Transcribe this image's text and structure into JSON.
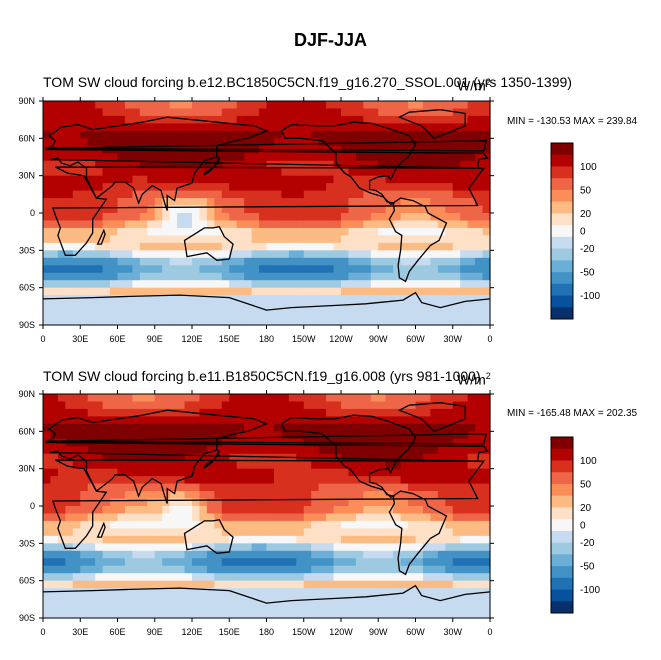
{
  "figure": {
    "title": "DJF-JJA"
  },
  "chart_data": [
    {
      "type": "heatmap",
      "title": "TOM SW cloud forcing",
      "case_label": "b.e12.BC1850C5CN.f19_g16.270_SSOL.001 (yrs 1350-1399)",
      "units_base": "W/m",
      "units_exp": "2",
      "minmax": "MIN = -130.53 MAX = 239.84",
      "min": -130.53,
      "max": 239.84,
      "xlim": [
        0,
        360
      ],
      "ylim": [
        -90,
        90
      ],
      "x_ticks": [
        "0",
        "30E",
        "60E",
        "90E",
        "120E",
        "150E",
        "180",
        "150W",
        "120W",
        "90W",
        "60W",
        "30W",
        "0"
      ],
      "y_ticks": [
        "90N",
        "60N",
        "30N",
        "0",
        "30S",
        "60S",
        "90S"
      ],
      "colorbar_labels": [
        "100",
        "50",
        "20",
        "0",
        "-20",
        "-50",
        "-100"
      ]
    },
    {
      "type": "heatmap",
      "title": "TOM SW cloud forcing",
      "case_label": "b.e11.B1850C5CN.f19_g16.008 (yrs 981-1000)",
      "units_base": "W/m",
      "units_exp": "2",
      "minmax": "MIN = -165.48 MAX = 202.35",
      "min": -165.48,
      "max": 202.35,
      "xlim": [
        0,
        360
      ],
      "ylim": [
        -90,
        90
      ],
      "x_ticks": [
        "0",
        "30E",
        "60E",
        "90E",
        "120E",
        "150E",
        "180",
        "150W",
        "120W",
        "90W",
        "60W",
        "30W",
        "0"
      ],
      "y_ticks": [
        "90N",
        "60N",
        "30N",
        "0",
        "30S",
        "60S",
        "90S"
      ],
      "colorbar_labels": [
        "100",
        "50",
        "20",
        "0",
        "-20",
        "-50",
        "-100"
      ]
    }
  ],
  "colors": {
    "scale": [
      "#7f0000",
      "#b30000",
      "#d7301f",
      "#ef6548",
      "#fc8d59",
      "#fdbb84",
      "#fde0c5",
      "#f7f7f7",
      "#c6dbef",
      "#9ecae1",
      "#6baed6",
      "#4292c6",
      "#2171b5",
      "#08519c",
      "#08306b"
    ]
  }
}
